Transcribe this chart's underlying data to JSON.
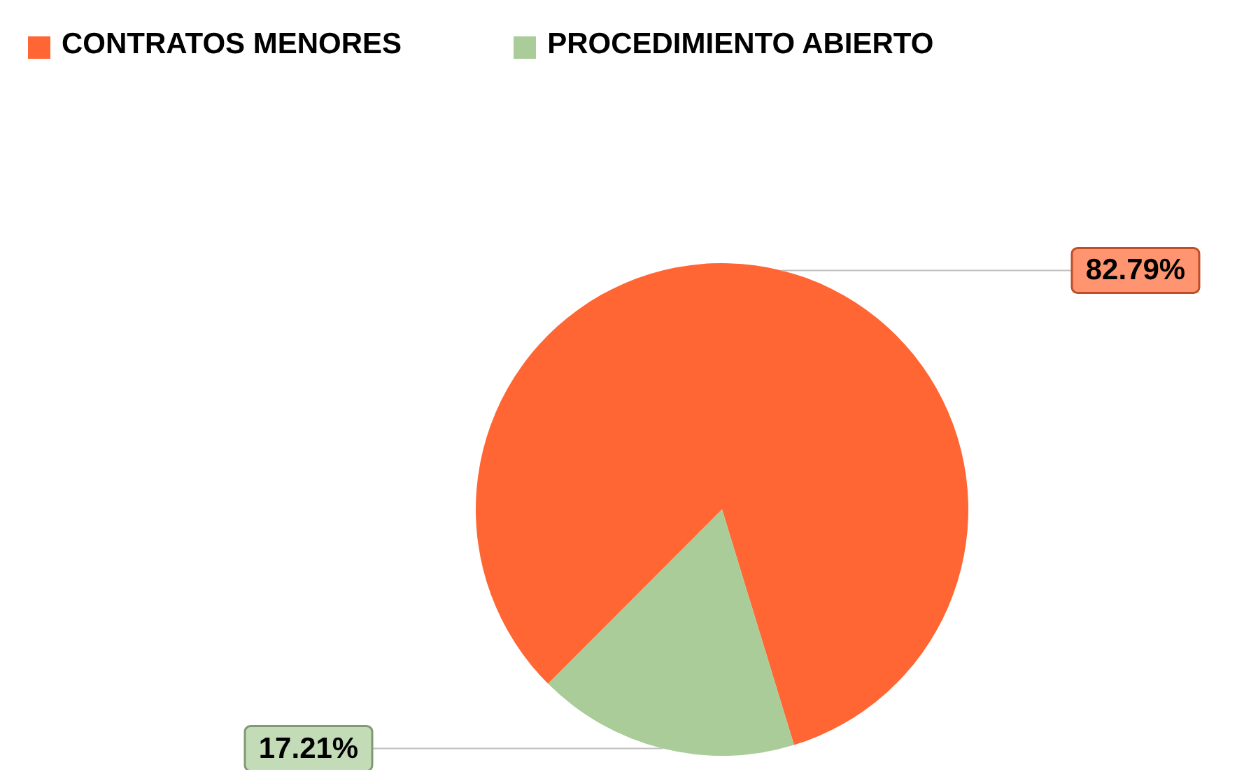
{
  "chart_data": {
    "type": "pie",
    "categories": [
      "CONTRATOS MENORES",
      "PROCEDIMIENTO ABIERTO"
    ],
    "values": [
      82.79,
      17.21
    ],
    "colors": [
      "#ff6633",
      "#aacc99"
    ],
    "value_labels": [
      "82.79%",
      "17.21%"
    ],
    "legend": "top left"
  }
}
